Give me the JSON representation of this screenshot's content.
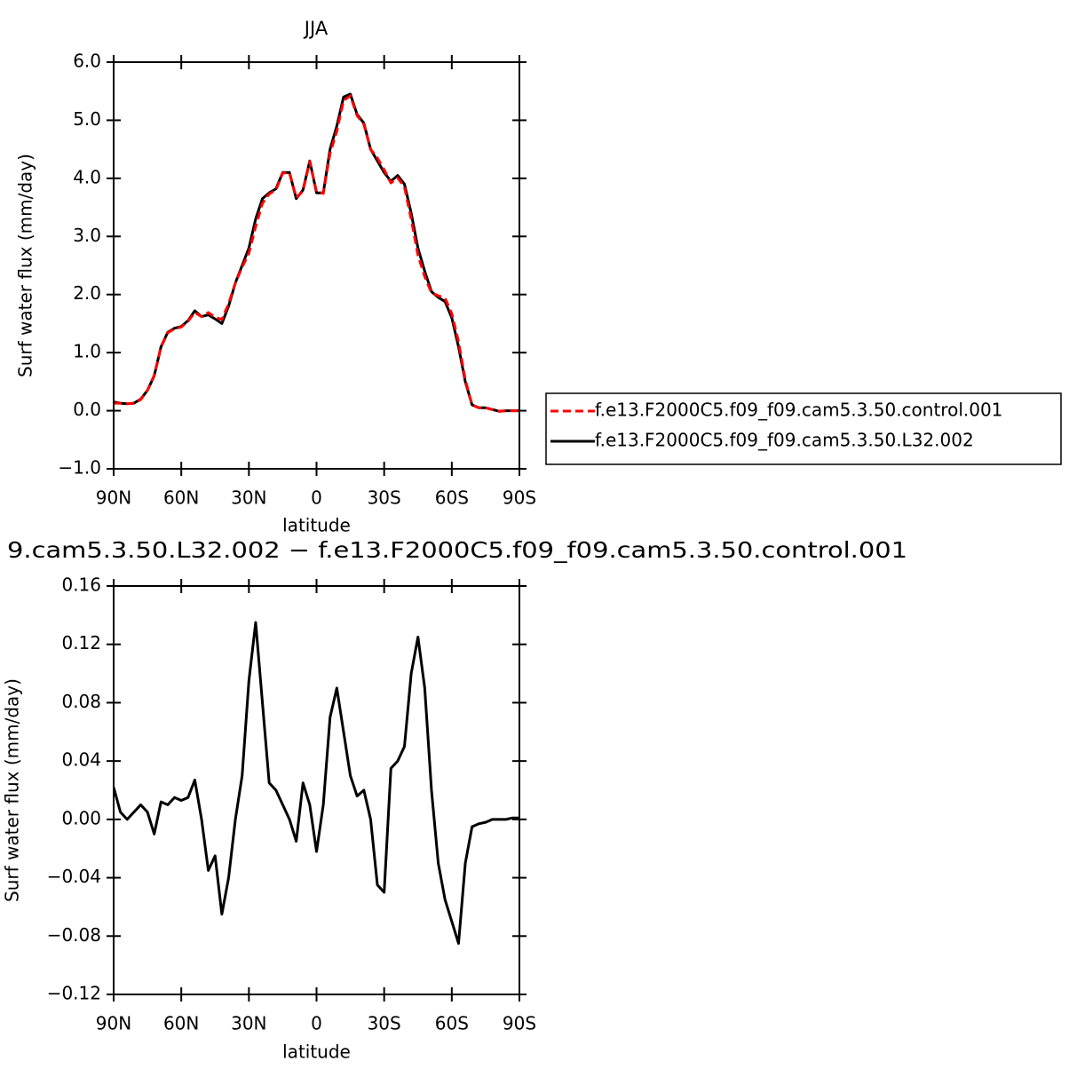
{
  "chart_data": [
    {
      "type": "line",
      "title": "JJA",
      "xlabel": "latitude",
      "ylabel": "Surf water flux (mm/day)",
      "x": [
        90,
        87,
        84,
        81,
        78,
        75,
        72,
        69,
        66,
        63,
        60,
        57,
        54,
        51,
        48,
        45,
        42,
        39,
        36,
        33,
        30,
        27,
        24,
        21,
        18,
        15,
        12,
        9,
        6,
        3,
        0,
        -3,
        -6,
        -9,
        -12,
        -15,
        -18,
        -21,
        -24,
        -27,
        -30,
        -33,
        -36,
        -39,
        -42,
        -45,
        -48,
        -51,
        -54,
        -57,
        -60,
        -63,
        -66,
        -69,
        -72,
        -75,
        -78,
        -81,
        -84,
        -87,
        -90
      ],
      "series": [
        {
          "name": "f.e13.F2000C5.f09_f09.cam5.3.50.control.001",
          "color": "#ff0000",
          "dashed": true,
          "values": [
            0.13,
            0.13,
            0.12,
            0.13,
            0.19,
            0.35,
            0.61,
            1.09,
            1.34,
            1.41,
            1.44,
            1.54,
            1.69,
            1.62,
            1.69,
            1.61,
            1.57,
            1.84,
            2.2,
            2.47,
            2.71,
            3.17,
            3.57,
            3.73,
            3.8,
            4.09,
            4.1,
            3.67,
            3.78,
            4.29,
            3.77,
            3.74,
            4.43,
            4.81,
            5.34,
            5.42,
            5.08,
            4.93,
            4.5,
            4.35,
            4.15,
            3.92,
            4.01,
            3.85,
            3.3,
            2.68,
            2.31,
            2.03,
            1.98,
            1.94,
            1.67,
            1.19,
            0.53,
            0.1,
            0.05,
            0.05,
            0.02,
            -0.01,
            0,
            0,
            0
          ]
        },
        {
          "name": "f.e13.F2000C5.f09_f09.cam5.3.50.L32.002",
          "color": "#000000",
          "dashed": false,
          "values": [
            0.15,
            0.13,
            0.12,
            0.13,
            0.2,
            0.35,
            0.6,
            1.1,
            1.35,
            1.42,
            1.45,
            1.55,
            1.72,
            1.62,
            1.65,
            1.58,
            1.5,
            1.8,
            2.2,
            2.5,
            2.8,
            3.3,
            3.65,
            3.75,
            3.82,
            4.1,
            4.1,
            3.65,
            3.8,
            4.3,
            3.75,
            3.75,
            4.5,
            4.9,
            5.4,
            5.45,
            5.1,
            4.95,
            4.5,
            4.3,
            4.1,
            3.95,
            4.05,
            3.9,
            3.4,
            2.8,
            2.4,
            2.05,
            1.95,
            1.88,
            1.6,
            1.1,
            0.5,
            0.1,
            0.05,
            0.05,
            0.02,
            -0.01,
            0,
            0,
            0
          ]
        }
      ],
      "xlim": [
        90,
        -90
      ],
      "xticks": [
        {
          "value": 90,
          "label": "90N"
        },
        {
          "value": 60,
          "label": "60N"
        },
        {
          "value": 30,
          "label": "30N"
        },
        0,
        {
          "value": -30,
          "label": "30S"
        },
        {
          "value": -60,
          "label": "60S"
        },
        {
          "value": -90,
          "label": "90S"
        }
      ],
      "ylim": [
        -1,
        6
      ],
      "yticks": [
        {
          "value": -1,
          "label": "−1.0"
        },
        {
          "value": 0,
          "label": "0.0"
        },
        {
          "value": 1,
          "label": "1.0"
        },
        {
          "value": 2,
          "label": "2.0"
        },
        {
          "value": 3,
          "label": "3.0"
        },
        {
          "value": 4,
          "label": "4.0"
        },
        {
          "value": 5,
          "label": "5.0"
        },
        {
          "value": 6,
          "label": "6.0"
        }
      ],
      "legend": "right"
    },
    {
      "type": "line",
      "title": "9.cam5.3.50.L32.002 − f.e13.F2000C5.f09_f09.cam5.3.50.control.001",
      "xlabel": "latitude",
      "ylabel": "Surf water flux (mm/day)",
      "x": [
        90,
        87,
        84,
        81,
        78,
        75,
        72,
        69,
        66,
        63,
        60,
        57,
        54,
        51,
        48,
        45,
        42,
        39,
        36,
        33,
        30,
        27,
        24,
        21,
        18,
        15,
        12,
        9,
        6,
        3,
        0,
        -3,
        -6,
        -9,
        -12,
        -15,
        -18,
        -21,
        -24,
        -27,
        -30,
        -33,
        -36,
        -39,
        -42,
        -45,
        -48,
        -51,
        -54,
        -57,
        -60,
        -63,
        -66,
        -69,
        -72,
        -75,
        -78,
        -81,
        -84,
        -87,
        -90
      ],
      "color": "#000000",
      "values": [
        0.022,
        0.005,
        0,
        0.005,
        0.01,
        0.005,
        -0.01,
        0.012,
        0.01,
        0.015,
        0.013,
        0.015,
        0.027,
        0,
        -0.035,
        -0.025,
        -0.065,
        -0.04,
        0,
        0.03,
        0.095,
        0.135,
        0.08,
        0.025,
        0.02,
        0.01,
        0,
        -0.015,
        0.025,
        0.01,
        -0.022,
        0.01,
        0.07,
        0.09,
        0.06,
        0.03,
        0.016,
        0.02,
        0,
        -0.045,
        -0.05,
        0.035,
        0.04,
        0.05,
        0.1,
        0.125,
        0.09,
        0.02,
        -0.03,
        -0.055,
        -0.07,
        -0.085,
        -0.03,
        -0.005,
        -0.003,
        -0.002,
        0,
        0,
        0,
        0.001,
        0.001
      ],
      "xlim": [
        90,
        -90
      ],
      "xticks": [
        {
          "value": 90,
          "label": "90N"
        },
        {
          "value": 60,
          "label": "60N"
        },
        {
          "value": 30,
          "label": "30N"
        },
        0,
        {
          "value": -30,
          "label": "30S"
        },
        {
          "value": -60,
          "label": "60S"
        },
        {
          "value": -90,
          "label": "90S"
        }
      ],
      "ylim": [
        -0.12,
        0.16
      ],
      "yticks": [
        {
          "value": -0.12,
          "label": "−0.12"
        },
        {
          "value": -0.08,
          "label": "−0.08"
        },
        {
          "value": -0.04,
          "label": "−0.04"
        },
        {
          "value": 0,
          "label": "0.00"
        },
        0.04,
        0.08,
        0.12,
        0.16
      ]
    }
  ]
}
